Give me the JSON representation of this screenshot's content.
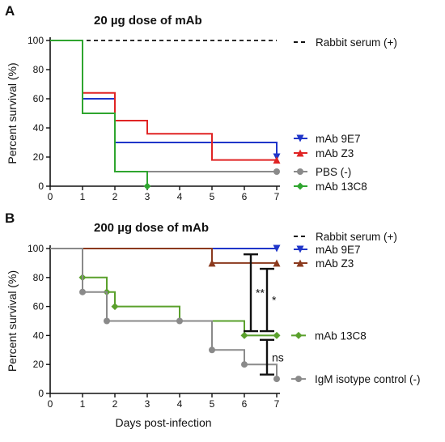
{
  "figure": {
    "panels": [
      "A",
      "B"
    ],
    "xlabel": "Days post-infection"
  },
  "chart_data": [
    {
      "type": "line",
      "step": true,
      "panel": "A",
      "title": "20 µg dose of mAb",
      "xlabel": "",
      "ylabel": "Percent survival (%)",
      "xlim": [
        0,
        7
      ],
      "ylim": [
        0,
        100
      ],
      "xticks": [
        0,
        1,
        2,
        3,
        4,
        5,
        6,
        7
      ],
      "yticks": [
        0,
        20,
        40,
        60,
        80,
        100
      ],
      "legend": [
        "Rabbit serum (+)",
        "mAb 9E7",
        "mAb Z3",
        "PBS (-)",
        "mAb 13C8"
      ],
      "series": [
        {
          "name": "Rabbit serum (+)",
          "color": "#111111",
          "dash": true,
          "marker": "none",
          "x": [
            0,
            7
          ],
          "y": [
            100,
            100
          ],
          "markers_x": []
        },
        {
          "name": "mAb 9E7",
          "color": "#1f35c9",
          "marker": "triangle-down",
          "x": [
            0,
            1,
            2,
            7
          ],
          "y": [
            100,
            60,
            30,
            20
          ],
          "markers_x": [
            7
          ]
        },
        {
          "name": "mAb Z3",
          "color": "#e02424",
          "marker": "triangle-up",
          "x": [
            0,
            1,
            2,
            3,
            5,
            7
          ],
          "y": [
            100,
            64,
            45,
            36,
            18,
            18
          ],
          "markers_x": [
            7
          ]
        },
        {
          "name": "PBS (-)",
          "color": "#8a8a8a",
          "marker": "circle",
          "x": [
            0,
            1,
            2,
            7
          ],
          "y": [
            100,
            50,
            10,
            10
          ],
          "markers_x": [
            7
          ]
        },
        {
          "name": "mAb 13C8",
          "color": "#2fa52f",
          "marker": "diamond",
          "x": [
            0,
            1,
            2,
            3
          ],
          "y": [
            100,
            50,
            10,
            0
          ],
          "markers_x": [
            3
          ]
        }
      ]
    },
    {
      "type": "line",
      "step": true,
      "panel": "B",
      "title": "200 µg dose of mAb",
      "xlabel": "Days post-infection",
      "ylabel": "Percent survival (%)",
      "xlim": [
        0,
        7
      ],
      "ylim": [
        0,
        100
      ],
      "xticks": [
        0,
        1,
        2,
        3,
        4,
        5,
        6,
        7
      ],
      "yticks": [
        0,
        20,
        40,
        60,
        80,
        100
      ],
      "legend": [
        "Rabbit serum (+)",
        "mAb 9E7",
        "mAb Z3"
      ],
      "series": [
        {
          "name": "Rabbit serum (+)",
          "color": "#111111",
          "dash": true,
          "marker": "none",
          "x": [
            0,
            7
          ],
          "y": [
            100,
            100
          ],
          "markers_x": []
        },
        {
          "name": "mAb 9E7",
          "color": "#1f35c9",
          "marker": "triangle-down",
          "x": [
            0,
            7
          ],
          "y": [
            100,
            100
          ],
          "markers_x": [
            7
          ]
        },
        {
          "name": "mAb Z3",
          "color": "#8b3a1e",
          "marker": "triangle-up",
          "x": [
            0,
            5,
            7
          ],
          "y": [
            100,
            90,
            90
          ],
          "markers_x": [
            5,
            7
          ]
        },
        {
          "name": "mAb 13C8",
          "color": "#5aa02c",
          "marker": "diamond",
          "x": [
            0,
            1,
            1.75,
            2,
            4,
            6,
            7
          ],
          "y": [
            100,
            80,
            70,
            60,
            50,
            40,
            40
          ],
          "markers_x": [
            1,
            1.75,
            2,
            6,
            7
          ]
        },
        {
          "name": "IgM isotype control (-)",
          "color": "#8a8a8a",
          "marker": "circle",
          "x": [
            0,
            1,
            1.75,
            5,
            6,
            7
          ],
          "y": [
            100,
            70,
            50,
            30,
            20,
            10
          ],
          "markers_x": [
            1,
            1.75,
            4,
            5,
            6,
            7
          ]
        }
      ],
      "annotations": [
        {
          "text": "mAb 13C8",
          "x": 7,
          "y": 40
        },
        {
          "text": "IgM isotype control (-)",
          "x": 7,
          "y": 10
        }
      ],
      "significance": [
        {
          "label": "**",
          "x": 6.2,
          "y1": 43,
          "y2": 96
        },
        {
          "label": "*",
          "x": 6.7,
          "y1": 43,
          "y2": 86
        },
        {
          "label": "ns",
          "x": 6.7,
          "y1": 13,
          "y2": 37
        }
      ]
    }
  ]
}
